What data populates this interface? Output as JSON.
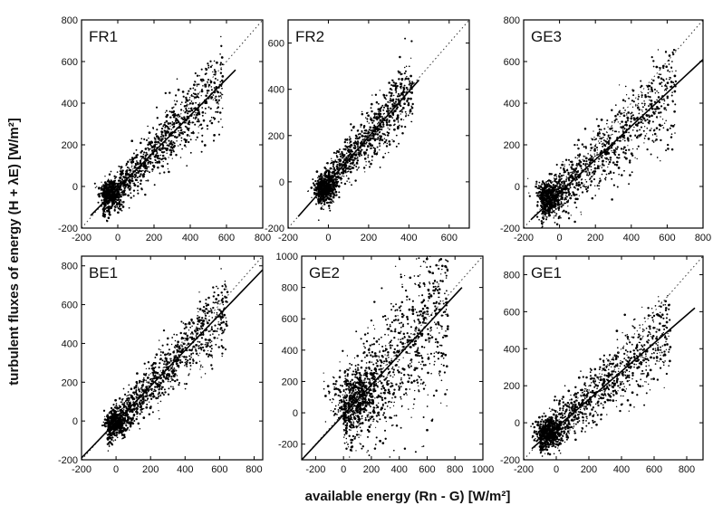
{
  "figure": {
    "xlabel": "available energy (Rn - G) [W/m²]",
    "ylabel": "turbulent fluxes of energy (H + λE) [W/m²]"
  },
  "chart_data": [
    {
      "type": "scatter",
      "title": "FR1",
      "xlim": [
        -200,
        800
      ],
      "ylim": [
        -200,
        800
      ],
      "xticks": [
        -200,
        0,
        200,
        400,
        600,
        800
      ],
      "yticks": [
        -200,
        0,
        200,
        400,
        600,
        800
      ],
      "fit_line": {
        "x": [
          -150,
          650
        ],
        "y": [
          -140,
          560
        ]
      },
      "one_to_one_line": {
        "x": [
          -200,
          800
        ],
        "y": [
          -200,
          800
        ]
      },
      "cloud": {
        "x_range": [
          -80,
          580
        ],
        "center": [
          -40,
          -30
        ],
        "spread": 50
      }
    },
    {
      "type": "scatter",
      "title": "FR2",
      "xlim": [
        -200,
        700
      ],
      "ylim": [
        -200,
        700
      ],
      "xticks": [
        -200,
        0,
        200,
        400,
        600
      ],
      "yticks": [
        -200,
        0,
        200,
        400,
        600
      ],
      "fit_line": {
        "x": [
          -150,
          450
        ],
        "y": [
          -150,
          440
        ]
      },
      "one_to_one_line": {
        "x": [
          -200,
          700
        ],
        "y": [
          -200,
          700
        ]
      },
      "cloud": {
        "x_range": [
          -50,
          420
        ],
        "center": [
          -20,
          -30
        ],
        "spread": 40
      }
    },
    {
      "type": "scatter",
      "title": "GE3",
      "xlim": [
        -200,
        800
      ],
      "ylim": [
        -200,
        800
      ],
      "xticks": [
        -200,
        0,
        200,
        400,
        600,
        800
      ],
      "yticks": [
        -200,
        0,
        200,
        400,
        600,
        800
      ],
      "fit_line": {
        "x": [
          -160,
          800
        ],
        "y": [
          -160,
          610
        ]
      },
      "one_to_one_line": {
        "x": [
          -200,
          800
        ],
        "y": [
          -200,
          800
        ]
      },
      "cloud": {
        "x_range": [
          -100,
          650
        ],
        "center": [
          -60,
          -40
        ],
        "spread": 60
      }
    },
    {
      "type": "scatter",
      "title": "BE1",
      "xlim": [
        -200,
        850
      ],
      "ylim": [
        -200,
        850
      ],
      "xticks": [
        -200,
        0,
        200,
        400,
        600,
        800
      ],
      "yticks": [
        -200,
        0,
        200,
        400,
        600,
        800
      ],
      "fit_line": {
        "x": [
          -200,
          850
        ],
        "y": [
          -190,
          780
        ]
      },
      "one_to_one_line": {
        "x": [
          -200,
          850
        ],
        "y": [
          -200,
          850
        ]
      },
      "cloud": {
        "x_range": [
          -50,
          650
        ],
        "center": [
          0,
          -10
        ],
        "spread": 50
      }
    },
    {
      "type": "scatter",
      "title": "GE2",
      "xlim": [
        -300,
        1000
      ],
      "ylim": [
        -300,
        1000
      ],
      "xticks": [
        -200,
        0,
        200,
        400,
        600,
        800,
        1000
      ],
      "yticks": [
        -200,
        0,
        200,
        400,
        600,
        800,
        1000
      ],
      "fit_line": {
        "x": [
          -300,
          850
        ],
        "y": [
          -300,
          800
        ]
      },
      "one_to_one_line": {
        "x": [
          -300,
          1000
        ],
        "y": [
          -300,
          1000
        ]
      },
      "cloud": {
        "x_range": [
          0,
          750
        ],
        "center": [
          100,
          100
        ],
        "spread": 150
      }
    },
    {
      "type": "scatter",
      "title": "GE1",
      "xlim": [
        -200,
        900
      ],
      "ylim": [
        -200,
        900
      ],
      "xticks": [
        -200,
        0,
        200,
        400,
        600,
        800
      ],
      "yticks": [
        -200,
        0,
        200,
        400,
        600,
        800
      ],
      "fit_line": {
        "x": [
          -150,
          850
        ],
        "y": [
          -140,
          620
        ]
      },
      "one_to_one_line": {
        "x": [
          -200,
          900
        ],
        "y": [
          -200,
          900
        ]
      },
      "cloud": {
        "x_range": [
          -100,
          700
        ],
        "center": [
          -50,
          -50
        ],
        "spread": 60
      }
    }
  ]
}
